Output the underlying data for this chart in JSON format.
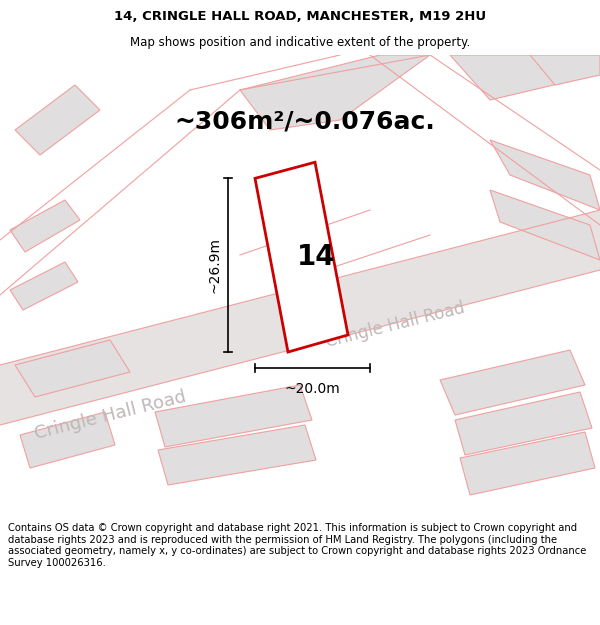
{
  "title_line1": "14, CRINGLE HALL ROAD, MANCHESTER, M19 2HU",
  "title_line2": "Map shows position and indicative extent of the property.",
  "area_text": "~306m²/~0.076ac.",
  "number_label": "14",
  "dim_width": "~20.0m",
  "dim_height": "~26.9m",
  "road_label1": "Cringle Hall Road",
  "road_label2": "Cringle Hall Road",
  "footer_text": "Contains OS data © Crown copyright and database right 2021. This information is subject to Crown copyright and database rights 2023 and is reproduced with the permission of HM Land Registry. The polygons (including the associated geometry, namely x, y co-ordinates) are subject to Crown copyright and database rights 2023 Ordnance Survey 100026316.",
  "map_bg": "#f0eeee",
  "plot_fill": "#ffffff",
  "plot_border": "#cc0000",
  "neighbor_fill": "#e0dede",
  "neighbor_edge": "#f0a0a0",
  "road_fill": "#e6e2e2",
  "road_edge": "#d8c8c8",
  "pink_line": "#f0a0a0",
  "title_fontsize": 9.5,
  "subtitle_fontsize": 8.5,
  "area_fontsize": 18,
  "label_fontsize": 20,
  "dim_fontsize": 10,
  "road_label_fontsize": 13,
  "footer_fontsize": 7.2,
  "title_bg": "#ffffff",
  "footer_bg": "#ffffff"
}
